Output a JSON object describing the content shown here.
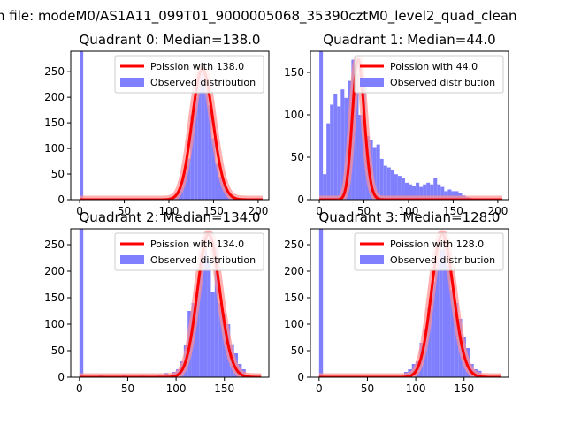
{
  "figure": {
    "suptitle": "n file: modeM0/AS1A11_099T01_9000005068_35390cztM0_level2_quad_clean"
  },
  "colors": {
    "hist": "#8080ff",
    "fit": "#ff0000",
    "fit_glow": "#ff9090"
  },
  "chart_data": [
    {
      "type": "bar",
      "title": "Quadrant 0: Median=138.0",
      "median": 138.0,
      "legend": [
        "Poission with 138.0",
        "Observed distribution"
      ],
      "legend_loc": "upper right",
      "xlim": [
        -10,
        212
      ],
      "ylim": [
        0,
        290
      ],
      "xticks": [
        0,
        50,
        100,
        150,
        200
      ],
      "yticks": [
        0,
        50,
        100,
        150,
        200,
        250
      ],
      "bin_width": 4,
      "bins": [
        [
          0,
          290
        ],
        [
          96,
          2
        ],
        [
          100,
          5
        ],
        [
          104,
          6
        ],
        [
          108,
          12
        ],
        [
          112,
          25
        ],
        [
          116,
          55
        ],
        [
          120,
          80
        ],
        [
          124,
          165
        ],
        [
          128,
          200
        ],
        [
          132,
          250
        ],
        [
          136,
          255
        ],
        [
          140,
          225
        ],
        [
          144,
          185
        ],
        [
          148,
          120
        ],
        [
          152,
          70
        ],
        [
          156,
          45
        ],
        [
          160,
          30
        ],
        [
          164,
          12
        ],
        [
          168,
          5
        ],
        [
          172,
          3
        ],
        [
          176,
          2
        ],
        [
          184,
          1
        ],
        [
          196,
          2
        ]
      ]
    },
    {
      "type": "bar",
      "title": "Quadrant 1: Median=44.0",
      "median": 44.0,
      "legend": [
        "Poission with 44.0",
        "Observed distribution"
      ],
      "legend_loc": "upper right",
      "xlim": [
        -10,
        212
      ],
      "ylim": [
        0,
        175
      ],
      "xticks": [
        0,
        50,
        100,
        150,
        200
      ],
      "yticks": [
        0,
        50,
        100,
        150
      ],
      "bin_width": 4,
      "bins": [
        [
          0,
          175
        ],
        [
          4,
          30
        ],
        [
          8,
          90
        ],
        [
          12,
          112
        ],
        [
          16,
          125
        ],
        [
          20,
          110
        ],
        [
          24,
          130
        ],
        [
          28,
          120
        ],
        [
          32,
          140
        ],
        [
          36,
          165
        ],
        [
          40,
          148
        ],
        [
          44,
          100
        ],
        [
          48,
          140
        ],
        [
          52,
          75
        ],
        [
          56,
          70
        ],
        [
          60,
          62
        ],
        [
          64,
          65
        ],
        [
          68,
          48
        ],
        [
          72,
          40
        ],
        [
          76,
          38
        ],
        [
          80,
          35
        ],
        [
          84,
          30
        ],
        [
          88,
          28
        ],
        [
          92,
          25
        ],
        [
          96,
          20
        ],
        [
          100,
          18
        ],
        [
          104,
          16
        ],
        [
          108,
          20
        ],
        [
          112,
          15
        ],
        [
          116,
          18
        ],
        [
          120,
          20
        ],
        [
          124,
          18
        ],
        [
          128,
          25
        ],
        [
          132,
          18
        ],
        [
          136,
          15
        ],
        [
          140,
          10
        ],
        [
          144,
          12
        ],
        [
          148,
          10
        ],
        [
          152,
          10
        ],
        [
          156,
          8
        ],
        [
          160,
          5
        ],
        [
          164,
          3
        ],
        [
          168,
          2
        ],
        [
          172,
          1
        ]
      ]
    },
    {
      "type": "bar",
      "title": "Quadrant 2: Median=134.0",
      "median": 134.0,
      "legend": [
        "Poission with 134.0",
        "Observed distribution"
      ],
      "legend_loc": "upper right",
      "xlim": [
        -9,
        196
      ],
      "ylim": [
        0,
        280
      ],
      "xticks": [
        0,
        50,
        100,
        150
      ],
      "yticks": [
        0,
        50,
        100,
        150,
        200,
        250
      ],
      "bin_width": 4,
      "bins": [
        [
          0,
          280
        ],
        [
          4,
          2
        ],
        [
          8,
          2
        ],
        [
          12,
          2
        ],
        [
          20,
          5
        ],
        [
          28,
          2
        ],
        [
          44,
          5
        ],
        [
          56,
          2
        ],
        [
          64,
          3
        ],
        [
          72,
          2
        ],
        [
          80,
          5
        ],
        [
          84,
          3
        ],
        [
          88,
          8
        ],
        [
          92,
          5
        ],
        [
          96,
          10
        ],
        [
          100,
          15
        ],
        [
          104,
          30
        ],
        [
          108,
          60
        ],
        [
          112,
          125
        ],
        [
          116,
          140
        ],
        [
          120,
          160
        ],
        [
          124,
          210
        ],
        [
          128,
          270
        ],
        [
          132,
          220
        ],
        [
          136,
          160
        ],
        [
          140,
          245
        ],
        [
          144,
          140
        ],
        [
          148,
          120
        ],
        [
          152,
          100
        ],
        [
          156,
          62
        ],
        [
          160,
          45
        ],
        [
          164,
          25
        ],
        [
          168,
          15
        ],
        [
          172,
          5
        ]
      ]
    },
    {
      "type": "bar",
      "title": "Quadrant 3: Median=128.0",
      "median": 128.0,
      "legend": [
        "Poission with 128.0",
        "Observed distribution"
      ],
      "legend_loc": "upper right",
      "xlim": [
        -9,
        196
      ],
      "ylim": [
        0,
        280
      ],
      "xticks": [
        0,
        50,
        100,
        150
      ],
      "yticks": [
        0,
        50,
        100,
        150,
        200,
        250
      ],
      "bin_width": 4,
      "bins": [
        [
          0,
          280
        ],
        [
          84,
          2
        ],
        [
          88,
          10
        ],
        [
          92,
          15
        ],
        [
          96,
          25
        ],
        [
          100,
          30
        ],
        [
          104,
          65
        ],
        [
          108,
          90
        ],
        [
          112,
          130
        ],
        [
          116,
          180
        ],
        [
          120,
          225
        ],
        [
          124,
          240
        ],
        [
          128,
          270
        ],
        [
          132,
          210
        ],
        [
          136,
          165
        ],
        [
          140,
          140
        ],
        [
          144,
          110
        ],
        [
          148,
          75
        ],
        [
          152,
          55
        ],
        [
          156,
          25
        ],
        [
          160,
          15
        ],
        [
          164,
          12
        ],
        [
          168,
          5
        ],
        [
          172,
          2
        ]
      ]
    }
  ]
}
